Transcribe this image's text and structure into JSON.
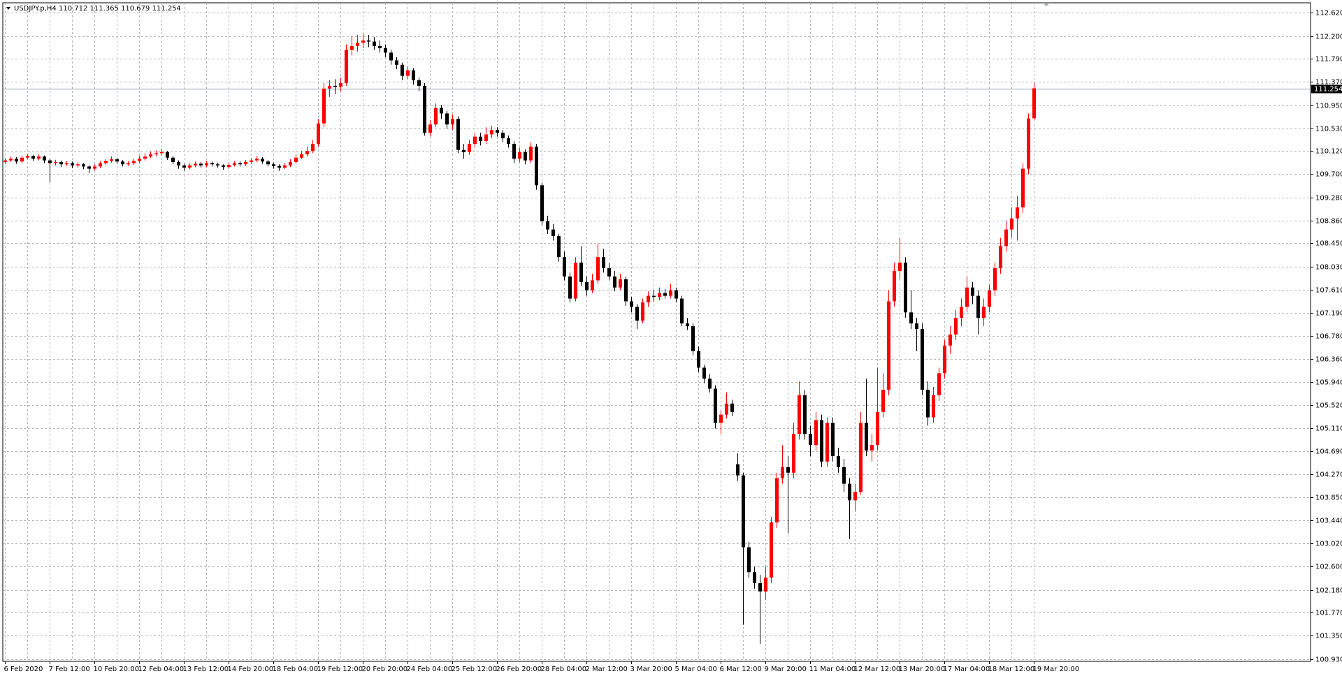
{
  "chart_data": {
    "type": "candlestick",
    "header": "USDJPY.p,H4  110.712 111.365 110.679 111.254",
    "bull_color": "#ff0000",
    "bear_color": "#000000",
    "grid": true,
    "ylim": [
      100.886,
      112.802
    ],
    "yticks": [
      {
        "value": 112.62,
        "label": "112.620"
      },
      {
        "value": 112.2,
        "label": "112.200"
      },
      {
        "value": 111.79,
        "label": "111.790"
      },
      {
        "value": 111.37,
        "label": "111.370"
      },
      {
        "value": 110.95,
        "label": "110.950"
      },
      {
        "value": 110.53,
        "label": "110.530"
      },
      {
        "value": 110.12,
        "label": "110.120"
      },
      {
        "value": 109.7,
        "label": "109.700"
      },
      {
        "value": 109.28,
        "label": "109.280"
      },
      {
        "value": 108.86,
        "label": "108.860"
      },
      {
        "value": 108.45,
        "label": "108.450"
      },
      {
        "value": 108.03,
        "label": "108.030"
      },
      {
        "value": 107.61,
        "label": "107.610"
      },
      {
        "value": 107.19,
        "label": "107.190"
      },
      {
        "value": 106.78,
        "label": "106.780"
      },
      {
        "value": 106.36,
        "label": "106.360"
      },
      {
        "value": 105.94,
        "label": "105.940"
      },
      {
        "value": 105.52,
        "label": "105.520"
      },
      {
        "value": 105.11,
        "label": "105.110"
      },
      {
        "value": 104.69,
        "label": "104.690"
      },
      {
        "value": 104.27,
        "label": "104.270"
      },
      {
        "value": 103.85,
        "label": "103.850"
      },
      {
        "value": 103.44,
        "label": "103.440"
      },
      {
        "value": 103.02,
        "label": "103.020"
      },
      {
        "value": 102.6,
        "label": "102.600"
      },
      {
        "value": 102.18,
        "label": "102.180"
      },
      {
        "value": 101.77,
        "label": "101.770"
      },
      {
        "value": 101.35,
        "label": "101.350"
      },
      {
        "value": 100.93,
        "label": "100.930"
      }
    ],
    "current_price": {
      "value": 111.254,
      "label": "111.254"
    },
    "x_labels": [
      "6 Feb 2020",
      "7 Feb 12:00",
      "10 Feb 20:00",
      "12 Feb 04:00",
      "13 Feb 12:00",
      "14 Feb 20:00",
      "18 Feb 04:00",
      "19 Feb 12:00",
      "20 Feb 20:00",
      "24 Feb 04:00",
      "25 Feb 12:00",
      "26 Feb 20:00",
      "28 Feb 04:00",
      "2 Mar 12:00",
      "3 Mar 20:00",
      "5 Mar 04:00",
      "6 Mar 12:00",
      "9 Mar 20:00",
      "11 Mar 04:00",
      "12 Mar 12:00",
      "13 Mar 20:00",
      "17 Mar 04:00",
      "18 Mar 12:00",
      "19 Mar 20:00"
    ],
    "ohlc": [
      [
        109.92,
        109.99,
        109.89,
        109.95
      ],
      [
        109.95,
        110.02,
        109.92,
        109.98
      ],
      [
        109.98,
        110.01,
        109.89,
        109.93
      ],
      [
        109.93,
        110.04,
        109.9,
        110.0
      ],
      [
        110.0,
        110.07,
        109.97,
        110.03
      ],
      [
        110.03,
        110.05,
        109.94,
        109.98
      ],
      [
        109.98,
        110.06,
        109.95,
        110.02
      ],
      [
        110.02,
        110.04,
        109.9,
        109.95
      ],
      [
        109.95,
        109.98,
        109.55,
        109.9
      ],
      [
        109.9,
        109.96,
        109.86,
        109.92
      ],
      [
        109.92,
        109.95,
        109.83,
        109.88
      ],
      [
        109.88,
        109.94,
        109.85,
        109.9
      ],
      [
        109.9,
        109.93,
        109.81,
        109.86
      ],
      [
        109.86,
        109.92,
        109.82,
        109.88
      ],
      [
        109.88,
        109.9,
        109.79,
        109.84
      ],
      [
        109.84,
        109.86,
        109.72,
        109.8
      ],
      [
        109.8,
        109.88,
        109.77,
        109.84
      ],
      [
        109.84,
        109.94,
        109.81,
        109.9
      ],
      [
        109.9,
        109.98,
        109.87,
        109.94
      ],
      [
        109.94,
        110.02,
        109.91,
        109.97
      ],
      [
        109.97,
        110.0,
        109.89,
        109.93
      ],
      [
        109.93,
        109.96,
        109.84,
        109.88
      ],
      [
        109.88,
        109.94,
        109.85,
        109.9
      ],
      [
        109.9,
        109.98,
        109.87,
        109.94
      ],
      [
        109.94,
        110.03,
        109.91,
        109.98
      ],
      [
        109.98,
        110.08,
        109.95,
        110.02
      ],
      [
        110.02,
        110.11,
        109.99,
        110.06
      ],
      [
        110.06,
        110.13,
        110.02,
        110.08
      ],
      [
        110.08,
        110.16,
        110.04,
        110.1
      ],
      [
        110.1,
        110.12,
        109.96,
        110.0
      ],
      [
        110.0,
        110.03,
        109.88,
        109.92
      ],
      [
        109.92,
        109.95,
        109.8,
        109.86
      ],
      [
        109.86,
        109.89,
        109.76,
        109.82
      ],
      [
        109.82,
        109.9,
        109.79,
        109.86
      ],
      [
        109.86,
        109.93,
        109.83,
        109.89
      ],
      [
        109.89,
        109.92,
        109.82,
        109.86
      ],
      [
        109.86,
        109.94,
        109.83,
        109.9
      ],
      [
        109.9,
        109.93,
        109.84,
        109.88
      ],
      [
        109.88,
        109.91,
        109.82,
        109.86
      ],
      [
        109.86,
        109.88,
        109.78,
        109.83
      ],
      [
        109.83,
        109.91,
        109.8,
        109.87
      ],
      [
        109.87,
        109.94,
        109.84,
        109.9
      ],
      [
        109.9,
        109.93,
        109.84,
        109.88
      ],
      [
        109.88,
        109.96,
        109.85,
        109.92
      ],
      [
        109.92,
        109.99,
        109.89,
        109.95
      ],
      [
        109.95,
        110.03,
        109.92,
        109.98
      ],
      [
        109.98,
        110.01,
        109.89,
        109.93
      ],
      [
        109.93,
        109.96,
        109.84,
        109.88
      ],
      [
        109.88,
        109.91,
        109.8,
        109.85
      ],
      [
        109.85,
        109.88,
        109.76,
        109.82
      ],
      [
        109.82,
        109.9,
        109.79,
        109.86
      ],
      [
        109.86,
        109.97,
        109.83,
        109.92
      ],
      [
        109.92,
        110.06,
        109.89,
        110.0
      ],
      [
        110.0,
        110.12,
        109.97,
        110.06
      ],
      [
        110.06,
        110.2,
        110.02,
        110.12
      ],
      [
        110.12,
        110.32,
        110.08,
        110.25
      ],
      [
        110.25,
        110.7,
        110.2,
        110.62
      ],
      [
        110.62,
        111.35,
        110.55,
        111.25
      ],
      [
        111.25,
        111.4,
        111.1,
        111.3
      ],
      [
        111.3,
        111.42,
        111.15,
        111.28
      ],
      [
        111.28,
        111.45,
        111.2,
        111.35
      ],
      [
        111.35,
        112.05,
        111.3,
        111.95
      ],
      [
        111.95,
        112.2,
        111.85,
        112.02
      ],
      [
        112.02,
        112.22,
        111.92,
        112.08
      ],
      [
        112.08,
        112.25,
        111.98,
        112.12
      ],
      [
        112.12,
        112.22,
        112.0,
        112.1
      ],
      [
        112.1,
        112.18,
        111.95,
        112.02
      ],
      [
        112.02,
        112.12,
        111.9,
        111.98
      ],
      [
        111.98,
        112.05,
        111.82,
        111.9
      ],
      [
        111.9,
        111.95,
        111.68,
        111.76
      ],
      [
        111.76,
        111.82,
        111.6,
        111.68
      ],
      [
        111.68,
        111.72,
        111.4,
        111.48
      ],
      [
        111.48,
        111.65,
        111.42,
        111.58
      ],
      [
        111.58,
        111.62,
        111.32,
        111.4
      ],
      [
        111.4,
        111.45,
        111.2,
        111.3
      ],
      [
        111.3,
        111.35,
        110.4,
        110.45
      ],
      [
        110.45,
        110.68,
        110.38,
        110.6
      ],
      [
        110.6,
        110.98,
        110.55,
        110.9
      ],
      [
        110.9,
        110.95,
        110.7,
        110.8
      ],
      [
        110.8,
        110.85,
        110.52,
        110.6
      ],
      [
        110.6,
        110.78,
        110.5,
        110.7
      ],
      [
        110.7,
        110.75,
        110.08,
        110.14
      ],
      [
        110.14,
        110.25,
        109.98,
        110.1
      ],
      [
        110.1,
        110.32,
        110.05,
        110.25
      ],
      [
        110.25,
        110.45,
        110.18,
        110.38
      ],
      [
        110.38,
        110.45,
        110.22,
        110.3
      ],
      [
        110.3,
        110.55,
        110.25,
        110.42
      ],
      [
        110.42,
        110.58,
        110.35,
        110.5
      ],
      [
        110.5,
        110.55,
        110.38,
        110.45
      ],
      [
        110.45,
        110.5,
        110.28,
        110.35
      ],
      [
        110.35,
        110.4,
        110.18,
        110.25
      ],
      [
        110.25,
        110.3,
        109.9,
        109.98
      ],
      [
        109.98,
        110.18,
        109.92,
        110.1
      ],
      [
        110.1,
        110.15,
        109.88,
        109.95
      ],
      [
        109.95,
        110.28,
        109.9,
        110.2
      ],
      [
        110.2,
        110.25,
        109.42,
        109.5
      ],
      [
        109.5,
        109.55,
        108.78,
        108.85
      ],
      [
        108.85,
        108.95,
        108.62,
        108.7
      ],
      [
        108.7,
        108.8,
        108.5,
        108.58
      ],
      [
        108.58,
        108.62,
        108.12,
        108.2
      ],
      [
        108.2,
        108.3,
        107.78,
        107.85
      ],
      [
        107.85,
        107.92,
        107.38,
        107.45
      ],
      [
        107.45,
        108.2,
        107.4,
        108.1
      ],
      [
        108.1,
        108.4,
        107.68,
        107.75
      ],
      [
        107.75,
        107.85,
        107.5,
        107.6
      ],
      [
        107.6,
        107.9,
        107.55,
        107.78
      ],
      [
        107.78,
        108.45,
        107.72,
        108.2
      ],
      [
        108.2,
        108.35,
        107.92,
        108.0
      ],
      [
        108.0,
        108.1,
        107.78,
        107.85
      ],
      [
        107.85,
        107.95,
        107.58,
        107.65
      ],
      [
        107.65,
        107.9,
        107.6,
        107.8
      ],
      [
        107.8,
        107.85,
        107.32,
        107.4
      ],
      [
        107.4,
        107.48,
        107.2,
        107.3
      ],
      [
        107.3,
        107.35,
        106.9,
        107.05
      ],
      [
        107.05,
        107.45,
        107.0,
        107.38
      ],
      [
        107.38,
        107.58,
        107.3,
        107.5
      ],
      [
        107.5,
        107.6,
        107.4,
        107.48
      ],
      [
        107.48,
        107.65,
        107.42,
        107.55
      ],
      [
        107.55,
        107.62,
        107.45,
        107.5
      ],
      [
        107.5,
        107.72,
        107.45,
        107.6
      ],
      [
        107.6,
        107.65,
        107.38,
        107.45
      ],
      [
        107.45,
        107.5,
        106.95,
        107.0
      ],
      [
        107.0,
        107.1,
        106.88,
        106.95
      ],
      [
        106.95,
        107.0,
        106.42,
        106.5
      ],
      [
        106.5,
        106.58,
        106.12,
        106.2
      ],
      [
        106.2,
        106.25,
        105.92,
        106.0
      ],
      [
        106.0,
        106.08,
        105.75,
        105.82
      ],
      [
        105.82,
        105.88,
        105.1,
        105.2
      ],
      [
        105.2,
        105.42,
        105.0,
        105.35
      ],
      [
        105.35,
        105.75,
        105.28,
        105.55
      ],
      [
        105.55,
        105.62,
        105.32,
        105.4
      ],
      [
        104.45,
        104.65,
        104.15,
        104.25
      ],
      [
        104.25,
        104.3,
        101.55,
        102.95
      ],
      [
        102.95,
        103.05,
        102.4,
        102.5
      ],
      [
        102.5,
        102.6,
        102.2,
        102.3
      ],
      [
        102.3,
        102.45,
        101.2,
        102.15
      ],
      [
        102.15,
        102.6,
        102.0,
        102.4
      ],
      [
        102.4,
        103.5,
        102.3,
        103.4
      ],
      [
        103.4,
        104.3,
        103.3,
        104.2
      ],
      [
        104.2,
        104.8,
        104.1,
        104.4
      ],
      [
        104.4,
        104.6,
        103.2,
        104.3
      ],
      [
        104.3,
        105.2,
        104.2,
        105.0
      ],
      [
        105.0,
        105.95,
        104.9,
        105.7
      ],
      [
        105.7,
        105.8,
        104.9,
        105.0
      ],
      [
        105.0,
        105.15,
        104.6,
        104.8
      ],
      [
        104.8,
        105.4,
        104.7,
        105.25
      ],
      [
        105.25,
        105.35,
        104.4,
        104.5
      ],
      [
        104.5,
        105.3,
        104.4,
        105.2
      ],
      [
        105.2,
        105.3,
        104.5,
        104.6
      ],
      [
        104.6,
        104.75,
        104.3,
        104.4
      ],
      [
        104.4,
        104.55,
        103.95,
        104.1
      ],
      [
        104.1,
        104.2,
        103.1,
        103.8
      ],
      [
        103.8,
        104.1,
        103.6,
        103.95
      ],
      [
        103.95,
        105.4,
        103.9,
        105.2
      ],
      [
        105.2,
        106.0,
        104.6,
        104.7
      ],
      [
        104.7,
        105.0,
        104.5,
        104.8
      ],
      [
        104.8,
        106.2,
        104.7,
        105.4
      ],
      [
        105.4,
        106.1,
        105.3,
        105.8
      ],
      [
        105.8,
        107.6,
        105.7,
        107.4
      ],
      [
        107.4,
        108.1,
        107.3,
        107.95
      ],
      [
        107.95,
        108.55,
        107.8,
        108.1
      ],
      [
        108.1,
        108.2,
        107.1,
        107.2
      ],
      [
        107.2,
        107.6,
        106.9,
        107.0
      ],
      [
        107.0,
        107.1,
        106.5,
        106.9
      ],
      [
        106.9,
        107.0,
        105.7,
        105.8
      ],
      [
        105.8,
        105.95,
        105.15,
        105.3
      ],
      [
        105.3,
        105.85,
        105.2,
        105.7
      ],
      [
        105.7,
        106.2,
        105.6,
        106.1
      ],
      [
        106.1,
        106.7,
        106.0,
        106.6
      ],
      [
        106.6,
        106.95,
        106.45,
        106.8
      ],
      [
        106.8,
        107.25,
        106.7,
        107.1
      ],
      [
        107.1,
        107.45,
        106.95,
        107.3
      ],
      [
        107.3,
        107.85,
        107.2,
        107.65
      ],
      [
        107.65,
        107.75,
        107.35,
        107.5
      ],
      [
        107.5,
        107.6,
        106.8,
        107.1
      ],
      [
        107.1,
        107.45,
        106.95,
        107.3
      ],
      [
        107.3,
        107.7,
        107.2,
        107.6
      ],
      [
        107.6,
        108.1,
        107.5,
        108.0
      ],
      [
        108.0,
        108.55,
        107.9,
        108.4
      ],
      [
        108.4,
        108.85,
        108.3,
        108.7
      ],
      [
        108.7,
        109.1,
        108.55,
        108.9
      ],
      [
        108.9,
        109.3,
        108.5,
        109.1
      ],
      [
        109.1,
        109.9,
        109.0,
        109.8
      ],
      [
        109.8,
        110.8,
        109.7,
        110.71
      ],
      [
        110.712,
        111.365,
        110.679,
        111.254
      ]
    ]
  }
}
